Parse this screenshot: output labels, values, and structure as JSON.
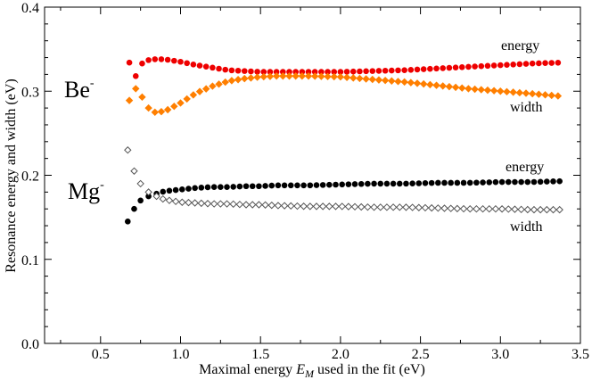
{
  "chart_data": {
    "type": "scatter",
    "xlabel_prefix": "Maximal energy ",
    "xlabel_symbol": "E",
    "xlabel_subscript": "M",
    "xlabel_suffix": " used in the fit (eV)",
    "ylabel": "Resonance energy and width (eV)",
    "xlim": [
      0.15,
      3.5
    ],
    "ylim": [
      0.0,
      0.4
    ],
    "x_ticks": [
      "0.5",
      "1.0",
      "1.5",
      "2.0",
      "2.5",
      "3.0",
      "3.5"
    ],
    "y_ticks": [
      "0.0",
      "0.1",
      "0.2",
      "0.3",
      "0.4"
    ],
    "grid": false,
    "be_label": "Be",
    "be_sup": "-",
    "mg_label": "Mg",
    "mg_sup": "-",
    "colors": {
      "be_energy": "#ee0000",
      "be_width": "#ff7f00",
      "mg_energy": "#000000",
      "mg_width": "#555555"
    },
    "annotations": {
      "be_energy": "energy",
      "be_width": "width",
      "mg_energy": "energy",
      "mg_width": "width"
    },
    "series": [
      {
        "name": "Be- energy",
        "marker": "circle",
        "color_key": "be_energy",
        "x": [
          0.68,
          0.72,
          0.76,
          0.8,
          0.84,
          0.9,
          1.0,
          1.1,
          1.2,
          1.3,
          1.4,
          1.5,
          1.6,
          1.8,
          2.0,
          2.2,
          2.4,
          2.6,
          2.8,
          3.0,
          3.2,
          3.38
        ],
        "y": [
          0.334,
          0.318,
          0.333,
          0.337,
          0.338,
          0.338,
          0.335,
          0.331,
          0.328,
          0.325,
          0.324,
          0.323,
          0.323,
          0.323,
          0.323,
          0.324,
          0.325,
          0.327,
          0.329,
          0.331,
          0.333,
          0.334
        ]
      },
      {
        "name": "Be- width",
        "marker": "diamond",
        "color_key": "be_width",
        "x": [
          0.68,
          0.72,
          0.76,
          0.8,
          0.84,
          0.9,
          1.0,
          1.1,
          1.2,
          1.3,
          1.4,
          1.5,
          1.6,
          1.8,
          2.0,
          2.2,
          2.4,
          2.6,
          2.8,
          3.0,
          3.2,
          3.38
        ],
        "y": [
          0.289,
          0.303,
          0.293,
          0.28,
          0.275,
          0.276,
          0.286,
          0.298,
          0.306,
          0.312,
          0.315,
          0.317,
          0.318,
          0.318,
          0.317,
          0.314,
          0.311,
          0.307,
          0.303,
          0.3,
          0.297,
          0.294
        ]
      },
      {
        "name": "Mg- energy",
        "marker": "circle",
        "color_key": "mg_energy",
        "x": [
          0.67,
          0.71,
          0.75,
          0.8,
          0.85,
          0.9,
          1.0,
          1.1,
          1.2,
          1.3,
          1.4,
          1.5,
          1.6,
          1.8,
          2.0,
          2.2,
          2.4,
          2.6,
          2.8,
          3.0,
          3.2,
          3.38
        ],
        "y": [
          0.145,
          0.16,
          0.17,
          0.175,
          0.178,
          0.181,
          0.183,
          0.185,
          0.186,
          0.186,
          0.187,
          0.187,
          0.188,
          0.188,
          0.189,
          0.19,
          0.19,
          0.191,
          0.191,
          0.192,
          0.192,
          0.193
        ]
      },
      {
        "name": "Mg- width",
        "marker": "diamond",
        "color_key": "mg_width",
        "x": [
          0.67,
          0.71,
          0.75,
          0.8,
          0.85,
          0.9,
          1.0,
          1.1,
          1.2,
          1.3,
          1.4,
          1.5,
          1.6,
          1.8,
          2.0,
          2.2,
          2.4,
          2.6,
          2.8,
          3.0,
          3.2,
          3.38
        ],
        "y": [
          0.23,
          0.205,
          0.19,
          0.18,
          0.175,
          0.171,
          0.168,
          0.167,
          0.166,
          0.166,
          0.165,
          0.165,
          0.164,
          0.163,
          0.163,
          0.162,
          0.162,
          0.161,
          0.16,
          0.16,
          0.159,
          0.159
        ]
      }
    ]
  }
}
